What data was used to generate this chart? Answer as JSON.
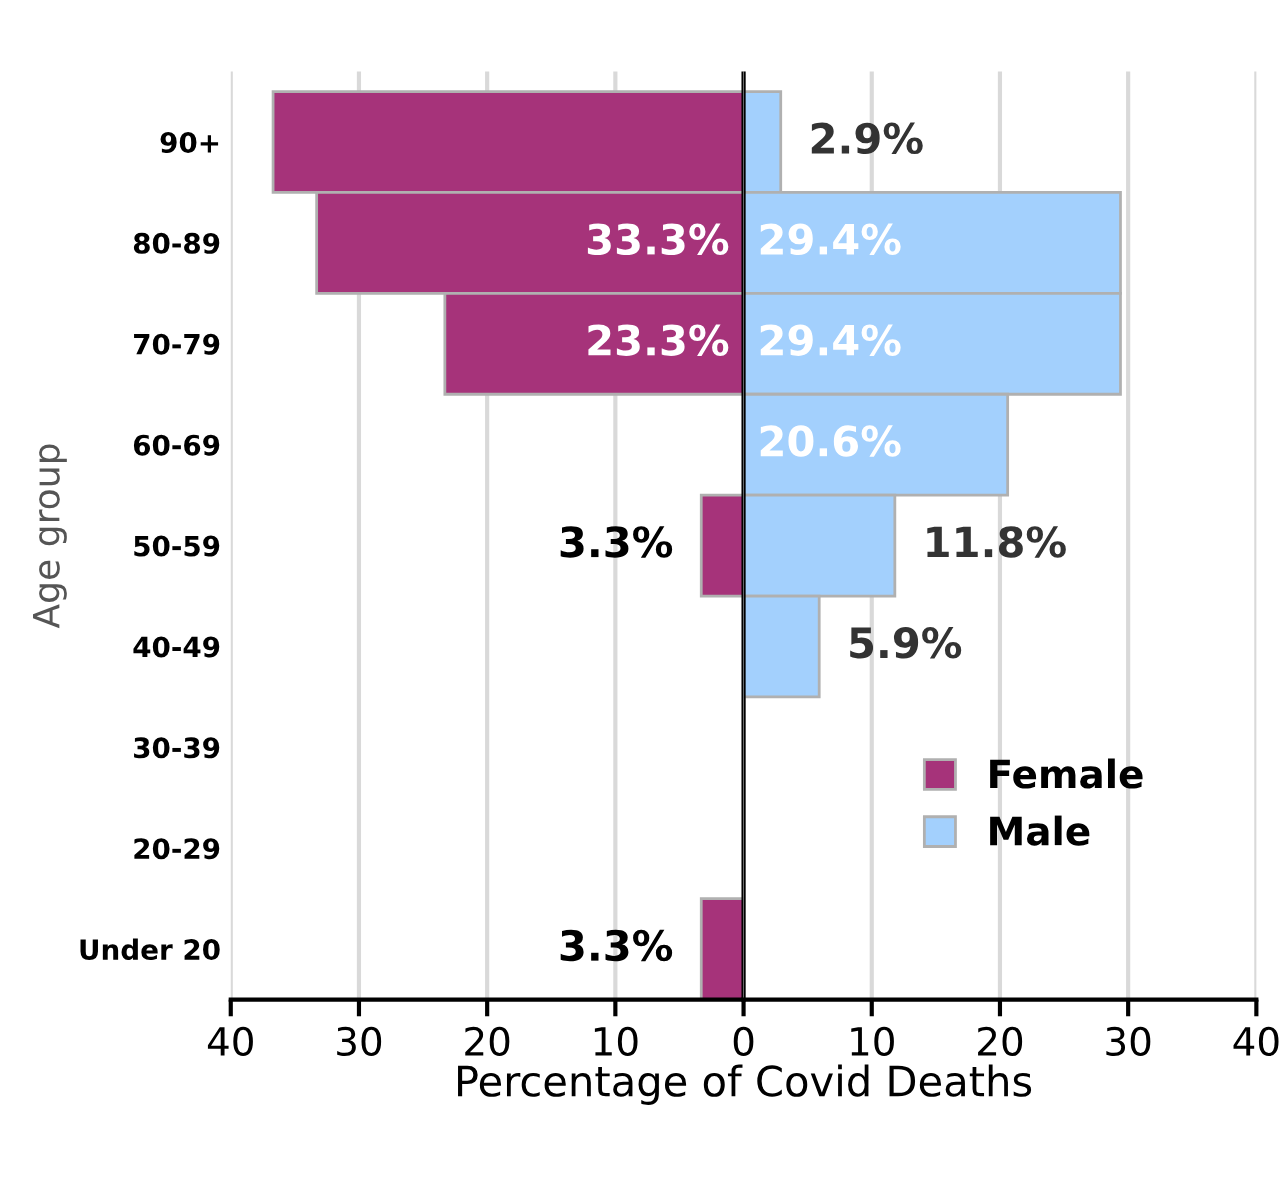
{
  "chart_data": [
    {
      "type": "bar",
      "orientation": "horizontal",
      "ylabel": "Age group",
      "categories": [
        "90+",
        "80-89",
        "70-79",
        "60-69",
        "50-59",
        "40-49",
        "30-39",
        "20-29",
        "Under 20"
      ],
      "series": [
        {
          "name": "Female",
          "color": "#a6337a",
          "values": [
            36.7,
            33.3,
            23.3,
            null,
            3.3,
            null,
            null,
            null,
            3.3
          ],
          "value_labels": [
            null,
            "33.3%",
            "23.3%",
            null,
            "3.3%",
            null,
            null,
            null,
            "3.3%"
          ]
        }
      ],
      "xlim": [
        40,
        0
      ],
      "xticks": [
        40,
        30,
        20,
        10
      ],
      "grid": "x"
    },
    {
      "type": "bar",
      "orientation": "horizontal",
      "xlabel": "Percentage of Covid Deaths",
      "series": [
        {
          "name": "Male",
          "color": "#a3d0fd",
          "values": [
            2.9,
            29.4,
            29.4,
            20.6,
            11.8,
            5.9,
            null,
            null,
            null
          ],
          "value_labels": [
            "2.9%",
            "29.4%",
            "29.4%",
            "20.6%",
            "11.8%",
            "5.9%",
            null,
            null,
            null
          ]
        }
      ],
      "xlim": [
        0,
        40
      ],
      "xticks": [
        0,
        10,
        20,
        30,
        40
      ],
      "grid": "x",
      "tick_labels": "x",
      "legend": "lower right"
    }
  ]
}
